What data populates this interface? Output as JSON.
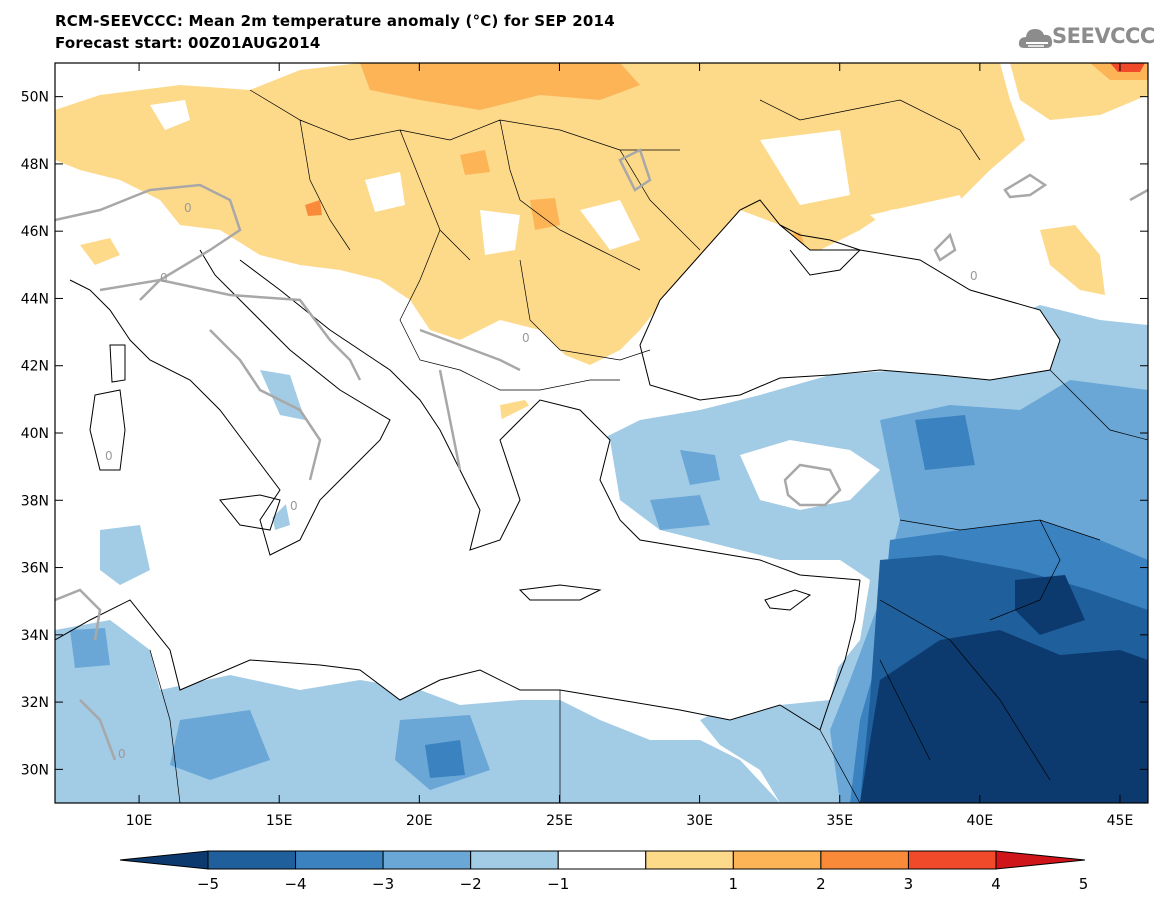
{
  "header": {
    "title": "RCM-SEEVCCC: Mean 2m temperature anomaly (°C) for SEP 2014",
    "subtitle": "Forecast start: 00Z01AUG2014"
  },
  "logo": {
    "text": "SEEVCCC",
    "icon": "cloud-icon",
    "color": "#8c8c8c"
  },
  "map": {
    "lon_range": [
      7,
      46
    ],
    "lat_range": [
      29,
      51
    ],
    "lon_ticks": [
      {
        "value": 10,
        "label": "10E"
      },
      {
        "value": 15,
        "label": "15E"
      },
      {
        "value": 20,
        "label": "20E"
      },
      {
        "value": 25,
        "label": "25E"
      },
      {
        "value": 30,
        "label": "30E"
      },
      {
        "value": 35,
        "label": "35E"
      },
      {
        "value": 40,
        "label": "40E"
      },
      {
        "value": 45,
        "label": "45E"
      }
    ],
    "lat_ticks": [
      {
        "value": 30,
        "label": "30N"
      },
      {
        "value": 32,
        "label": "32N"
      },
      {
        "value": 34,
        "label": "34N"
      },
      {
        "value": 36,
        "label": "36N"
      },
      {
        "value": 38,
        "label": "38N"
      },
      {
        "value": 40,
        "label": "40N"
      },
      {
        "value": 42,
        "label": "42N"
      },
      {
        "value": 44,
        "label": "44N"
      },
      {
        "value": 46,
        "label": "46N"
      },
      {
        "value": 48,
        "label": "48N"
      },
      {
        "value": 50,
        "label": "50N"
      }
    ],
    "contour_label": "0"
  },
  "colorbar": {
    "labels": [
      "−5",
      "−4",
      "−3",
      "−2",
      "−1",
      "1",
      "2",
      "3",
      "4",
      "5"
    ],
    "colors": [
      "#0c3a6e",
      "#1f5f9c",
      "#3a82c0",
      "#6aa7d6",
      "#a2cbe6",
      "#ffffff",
      "#fdd98a",
      "#fcb457",
      "#f98a3a",
      "#f04a2a",
      "#d0151a"
    ]
  },
  "palette": {
    "warm1": "#fdd98a",
    "warm2": "#fcb457",
    "warm3": "#f98a3a",
    "warm4": "#f04a2a",
    "cool1": "#a2cbe6",
    "cool2": "#6aa7d6",
    "cool3": "#3a82c0",
    "cool4": "#1f5f9c",
    "cool5": "#0c3a6e"
  }
}
